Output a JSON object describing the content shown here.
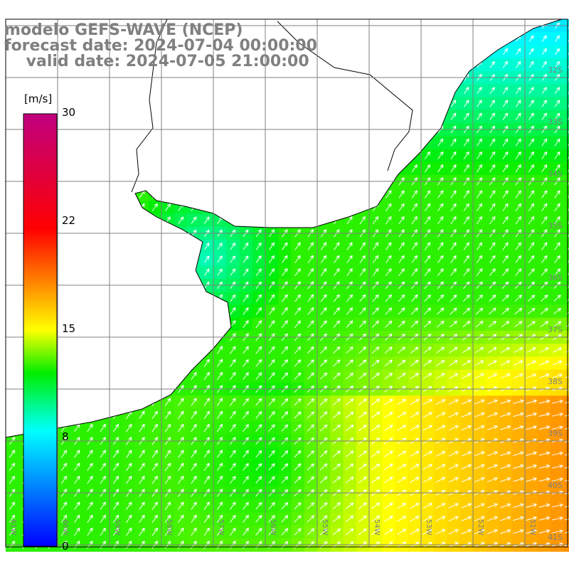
{
  "title": {
    "line1": "modelo GEFS-WAVE (NCEP)",
    "line2": "forecast date: 2024-07-04 00:00:00",
    "line3": "    valid date: 2024-07-05 21:00:00"
  },
  "colorbar": {
    "unit": "[m/s]",
    "ticks": [
      "30",
      "22",
      "15",
      "8",
      "0"
    ],
    "tick_values": [
      30,
      22,
      15,
      8,
      0
    ],
    "colors": [
      "#0000ff",
      "#00ffff",
      "#00ee00",
      "#ffff00",
      "#ff8000",
      "#ff0000",
      "#c00080"
    ]
  },
  "axes": {
    "lon_labels": [
      "61W",
      "60W",
      "59W",
      "58W",
      "57W",
      "56W",
      "55W",
      "54W",
      "53W",
      "52W",
      "51W"
    ],
    "lat_labels": [
      "32S",
      "33S",
      "34S",
      "35S",
      "36S",
      "37S",
      "38S",
      "39S",
      "40S",
      "41S"
    ]
  }
}
